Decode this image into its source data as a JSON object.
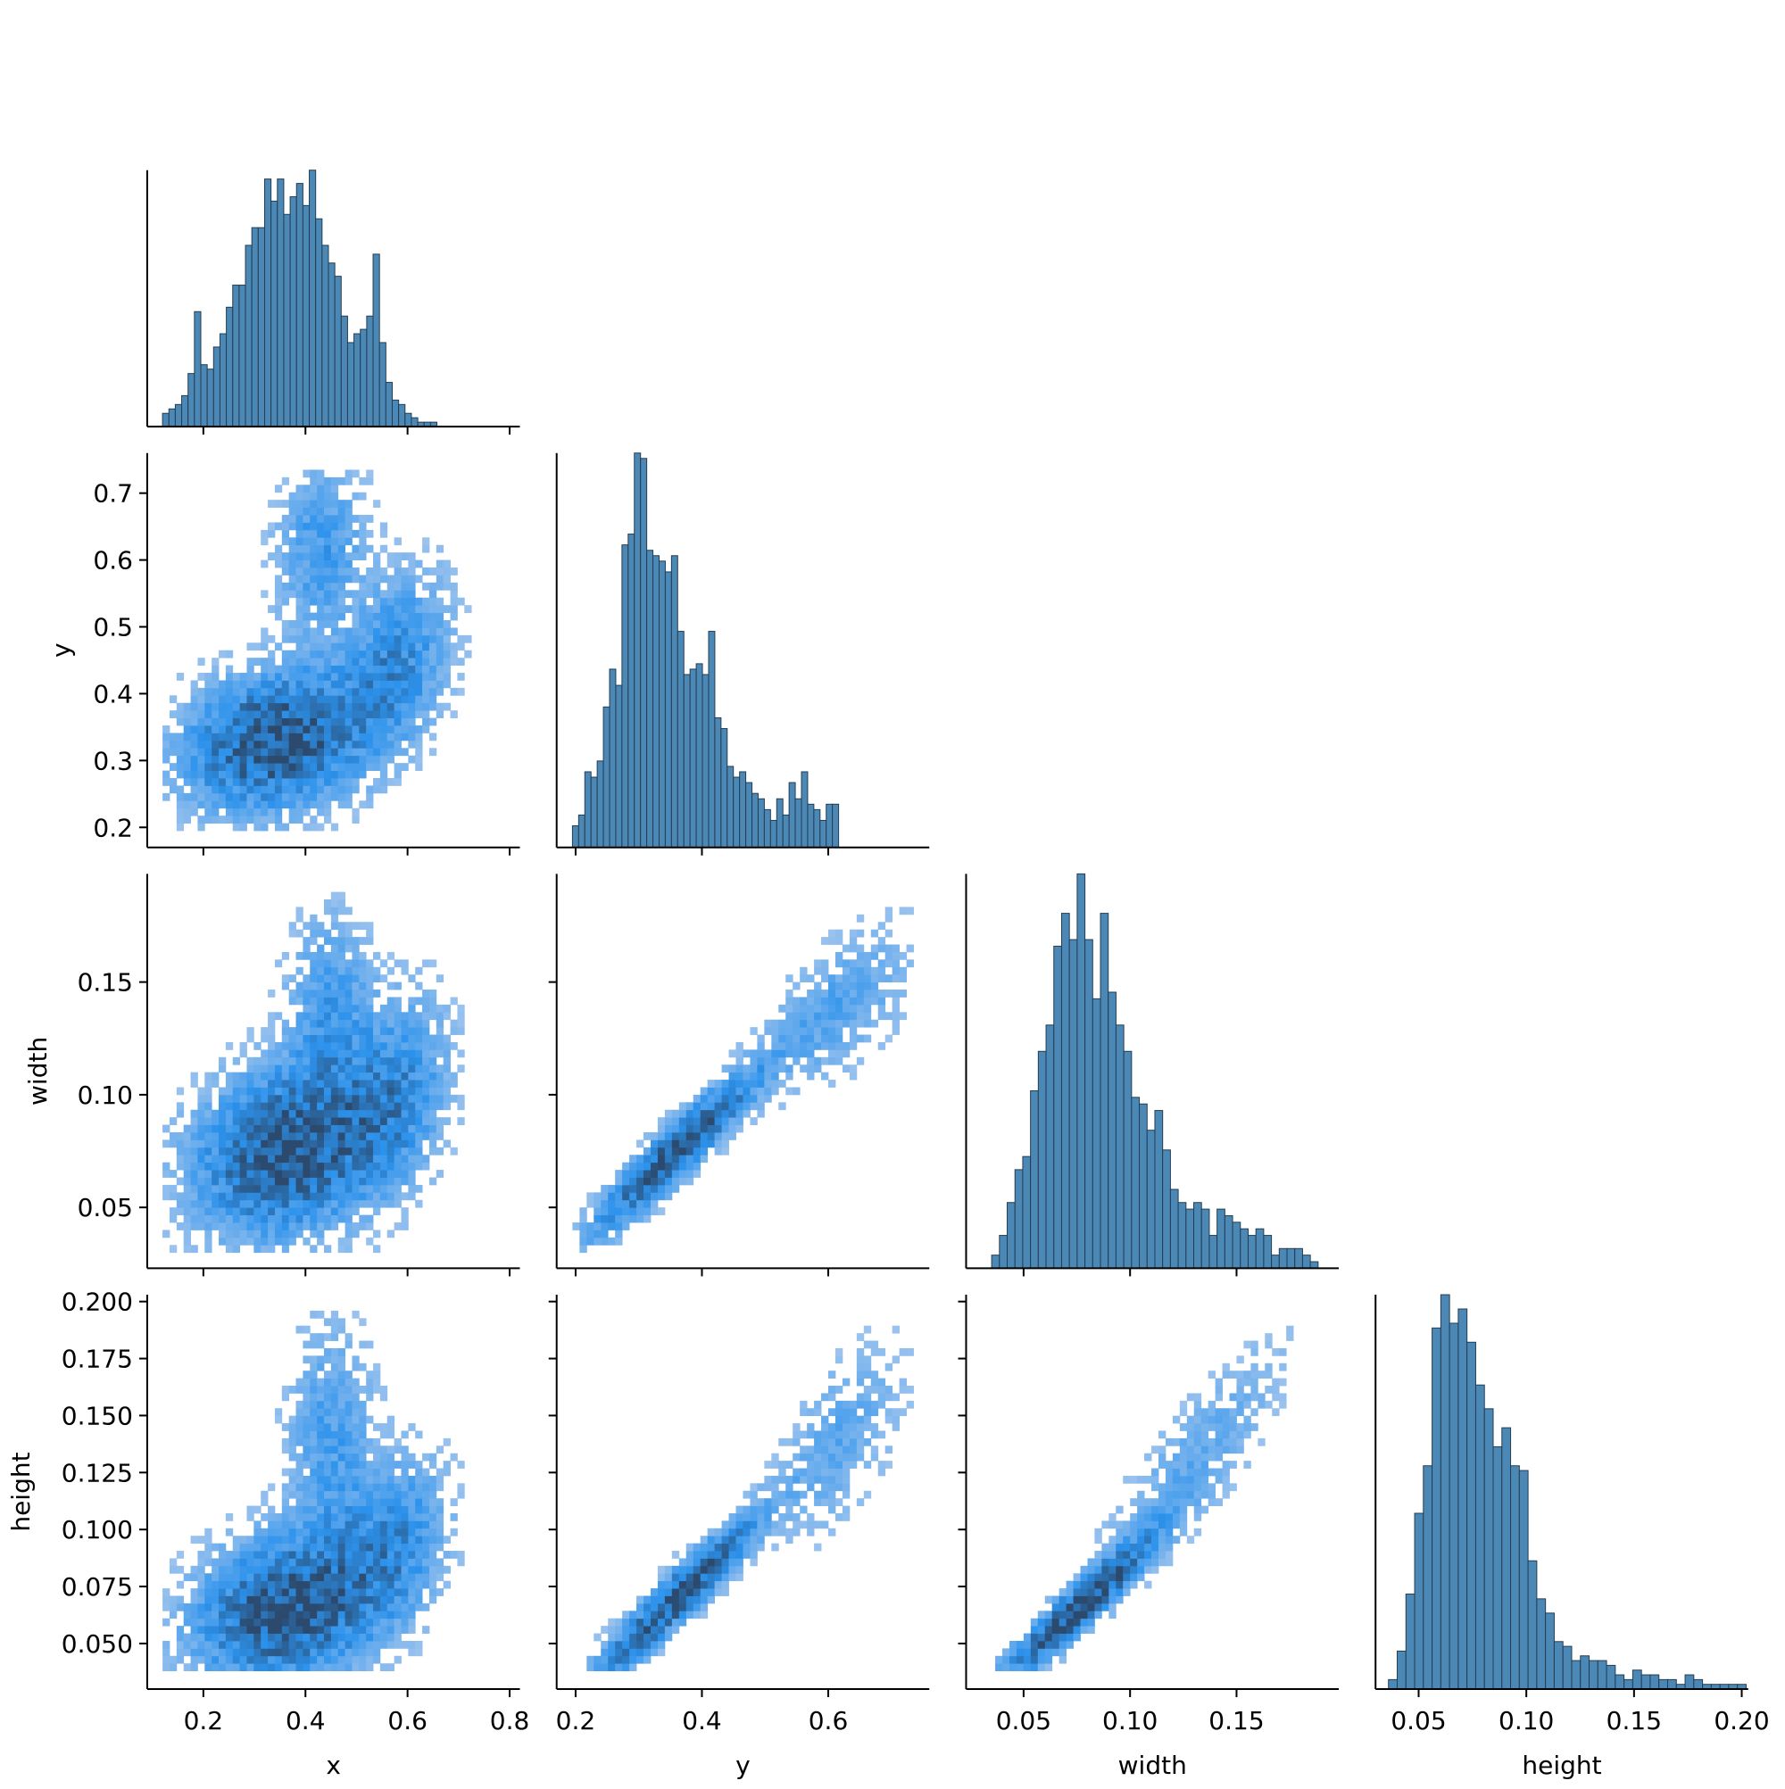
{
  "chart_data": {
    "type": "pairplot",
    "variables": [
      "x",
      "y",
      "width",
      "height"
    ],
    "colors": {
      "hist_bar": "#4c88b6",
      "hist_edge": "#243d52",
      "heat_light": "#a8c8ee",
      "heat_mid": "#2c92ec",
      "heat_dark": "#2b4a6e"
    },
    "axis_ranges": {
      "x": [
        0.09,
        0.82
      ],
      "y": [
        0.17,
        0.76
      ],
      "width": [
        0.023,
        0.198
      ],
      "height": [
        0.03,
        0.203
      ]
    },
    "ticks": {
      "x": {
        "values": [
          0.2,
          0.4,
          0.6,
          0.8
        ],
        "labels": [
          "0.2",
          "0.4",
          "0.6",
          "0.8"
        ]
      },
      "y": {
        "values": [
          0.2,
          0.3,
          0.4,
          0.5,
          0.6,
          0.7
        ],
        "labels": [
          "0.2",
          "0.3",
          "0.4",
          "0.5",
          "0.6",
          "0.7"
        ]
      },
      "y_bottom": {
        "values": [
          0.2,
          0.4,
          0.6
        ],
        "labels": [
          "0.2",
          "0.4",
          "0.6"
        ]
      },
      "width": {
        "values": [
          0.05,
          0.1,
          0.15
        ],
        "labels": [
          "0.05",
          "0.10",
          "0.15"
        ]
      },
      "height": {
        "values": [
          0.05,
          0.075,
          0.1,
          0.125,
          0.15,
          0.175,
          0.2
        ],
        "labels": [
          "0.050",
          "0.075",
          "0.100",
          "0.125",
          "0.150",
          "0.175",
          "0.200"
        ]
      },
      "height_bottom": {
        "values": [
          0.05,
          0.1,
          0.15,
          0.2
        ],
        "labels": [
          "0.05",
          "0.10",
          "0.15",
          "0.20"
        ]
      }
    },
    "axis_labels": {
      "x": "x",
      "y": "y",
      "width": "width",
      "height": "height"
    },
    "histograms": {
      "x": {
        "bin_start": 0.12,
        "bin_width": 0.0125,
        "counts": [
          3,
          4,
          5,
          7,
          12,
          26,
          14,
          13,
          18,
          21,
          27,
          32,
          32,
          41,
          45,
          45,
          56,
          51,
          56,
          48,
          52,
          55,
          50,
          58,
          47,
          41,
          37,
          34,
          25,
          19,
          21,
          22,
          25,
          39,
          19,
          10,
          6,
          5,
          3,
          2,
          1,
          1,
          1
        ]
      },
      "y": {
        "bin_start": 0.195,
        "bin_width": 0.0098,
        "counts": [
          4,
          6,
          14,
          13,
          16,
          26,
          33,
          30,
          56,
          58,
          73,
          72,
          55,
          54,
          53,
          51,
          54,
          40,
          32,
          33,
          34,
          32,
          40,
          24,
          22,
          15,
          13,
          14,
          12,
          10,
          9,
          7,
          5,
          9,
          6,
          12,
          9,
          14,
          8,
          7,
          5,
          8,
          8
        ]
      },
      "width": {
        "bin_start": 0.035,
        "bin_width": 0.00365,
        "counts": [
          2,
          5,
          10,
          15,
          17,
          27,
          33,
          37,
          49,
          54,
          50,
          60,
          50,
          41,
          54,
          42,
          37,
          33,
          26,
          25,
          21,
          24,
          18,
          12,
          10,
          9,
          10,
          9,
          5,
          9,
          8,
          7,
          6,
          5,
          6,
          5,
          2,
          3,
          3,
          3,
          2,
          1
        ]
      },
      "height": {
        "bin_start": 0.036,
        "bin_width": 0.00405,
        "counts": [
          2,
          8,
          20,
          37,
          47,
          76,
          83,
          77,
          80,
          73,
          64,
          59,
          51,
          55,
          47,
          46,
          27,
          19,
          16,
          10,
          9,
          6,
          7,
          6,
          6,
          5,
          3,
          2,
          4,
          3,
          3,
          2,
          2,
          1,
          3,
          2,
          1,
          1,
          1,
          1,
          1
        ]
      }
    },
    "scatter_hist2d_pairs": [
      {
        "x": "x",
        "y": "y"
      },
      {
        "x": "x",
        "y": "width"
      },
      {
        "x": "y",
        "y": "width"
      },
      {
        "x": "x",
        "y": "height"
      },
      {
        "x": "y",
        "y": "height"
      },
      {
        "x": "width",
        "y": "height"
      }
    ],
    "grid": false,
    "legend": "none"
  }
}
